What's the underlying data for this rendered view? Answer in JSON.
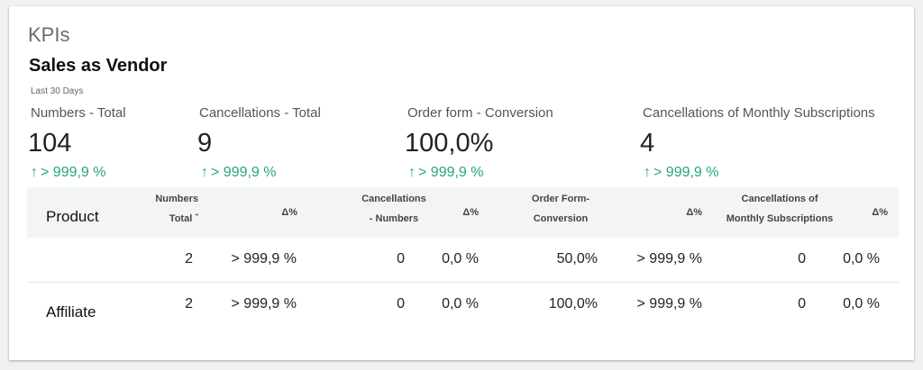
{
  "section_title": "KPIs",
  "widget": {
    "title": "Sales as Vendor",
    "period": "Last 30 Days"
  },
  "kpis": [
    {
      "label": "Numbers - Total",
      "value": "104",
      "change_arrow": "↑",
      "change": "> 999,9 %"
    },
    {
      "label": "Cancellations - Total",
      "value": "9",
      "change_arrow": "↑",
      "change": "> 999,9 %"
    },
    {
      "label": "Order form - Conversion",
      "value": "100,0%",
      "change_arrow": "↑",
      "change": "> 999,9 %"
    },
    {
      "label": "Cancellations of Monthly Subscriptions",
      "value": "4",
      "change_arrow": "↑",
      "change": "> 999,9 %"
    }
  ],
  "table": {
    "headers": {
      "product": "Product",
      "numbers_total_line1": "Numbers",
      "numbers_total_line2": "Total",
      "sort_indicator": "ˇ",
      "delta1": "Δ%",
      "cancellations_line1": "Cancellations",
      "cancellations_line2": "- Numbers",
      "delta2": "Δ%",
      "order_form_line1": "Order Form-",
      "order_form_line2": "Conversion",
      "delta3": "Δ%",
      "monthly_line1": "Cancellations of",
      "monthly_line2": "Monthly Subscriptions",
      "delta4": "Δ%"
    },
    "rows": [
      {
        "product": "",
        "numbers_total": "2",
        "delta1": "> 999,9 %",
        "cancellations": "0",
        "delta2": "0,0 %",
        "order_form": "50,0%",
        "delta3": "> 999,9 %",
        "monthly": "0",
        "delta4": "0,0 %"
      },
      {
        "product": "Affiliate",
        "numbers_total": "2",
        "delta1": "> 999,9 %",
        "cancellations": "0",
        "delta2": "0,0 %",
        "order_form": "100,0%",
        "delta3": "> 999,9 %",
        "monthly": "0",
        "delta4": "0,0 %"
      }
    ]
  }
}
